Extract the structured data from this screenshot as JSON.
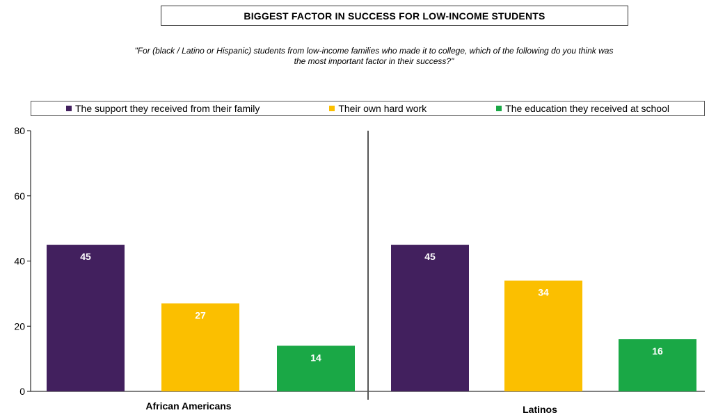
{
  "title": "BIGGEST FACTOR IN SUCCESS FOR LOW-INCOME STUDENTS",
  "subtitle_line1": "\"For (black / Latino or Hispanic) students from low-income families who made it to college, which of the following do you think was",
  "subtitle_line2": "the most important factor in their success?\"",
  "chart_data": {
    "type": "bar",
    "categories": [
      "African Americans",
      "Latinos"
    ],
    "series": [
      {
        "name": "The support they received from their family",
        "color": "#42205e",
        "values": [
          45,
          45
        ]
      },
      {
        "name": "Their own hard work",
        "color": "#fbbf00",
        "values": [
          27,
          34
        ]
      },
      {
        "name": "The education they received at school",
        "color": "#1aa846",
        "values": [
          14,
          16
        ]
      }
    ],
    "ylim": [
      0,
      80
    ],
    "yticks": [
      0,
      20,
      40,
      60,
      80
    ],
    "legend": "top",
    "grid": false,
    "data_labels": true
  }
}
